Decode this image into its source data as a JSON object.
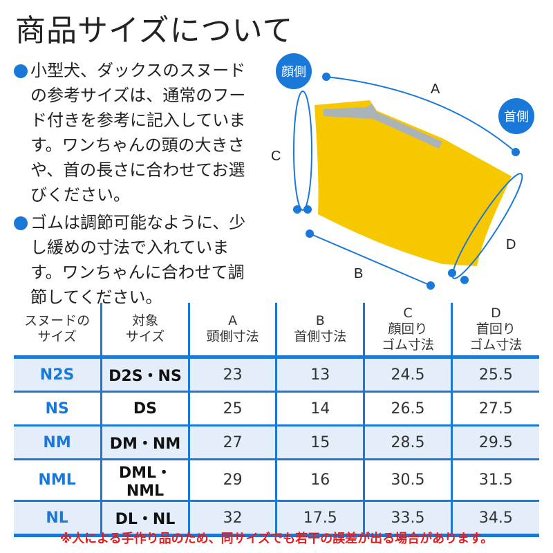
{
  "title": "商品サイズについて",
  "notes": [
    "小型犬、ダックスのスヌードの参考サイズは、通常のフード付きを参考に記入しています。ワンちゃんの頭の大きさや、首の長さに合わせてお選びください。",
    "ゴムは調節可能なように、少し緩めの寸法で入れています。ワンちゃんに合わせて調節してください。"
  ],
  "diagram": {
    "face_side": "顔側",
    "neck_side": "首側",
    "a": "A",
    "b": "B",
    "c": "C",
    "d": "D",
    "product_color": "#f7c800",
    "accent": "#1a78d8"
  },
  "table": {
    "headers": [
      [
        "スヌードの",
        "サイズ"
      ],
      [
        "対象",
        "サイズ"
      ],
      [
        "A",
        "頭側寸法"
      ],
      [
        "B",
        "首側寸法"
      ],
      [
        "C",
        "顔回り",
        "ゴム寸法"
      ],
      [
        "D",
        "首回り",
        "ゴム寸法"
      ]
    ],
    "rows": [
      [
        "N2S",
        "D2S・NS",
        "23",
        "13",
        "24.5",
        "25.5"
      ],
      [
        "NS",
        "DS",
        "25",
        "14",
        "26.5",
        "27.5"
      ],
      [
        "NM",
        "DM・NM",
        "27",
        "15",
        "28.5",
        "29.5"
      ],
      [
        "NML",
        "DML・NML",
        "29",
        "16",
        "30.5",
        "31.5"
      ],
      [
        "NL",
        "DL・NL",
        "32",
        "17.5",
        "33.5",
        "34.5"
      ]
    ]
  },
  "footnote": "※人による手作り品のため、同サイズでも若干の誤差が出る場合があります。"
}
